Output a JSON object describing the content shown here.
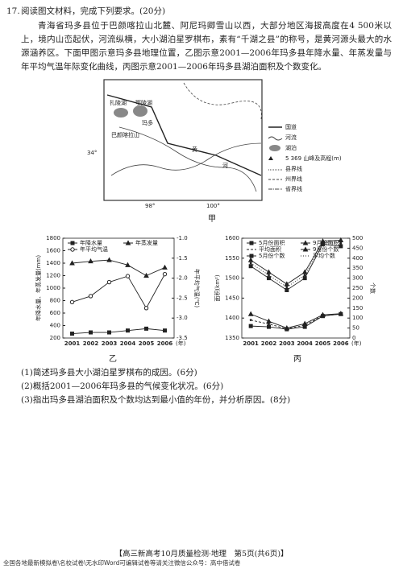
{
  "question": {
    "number": "17.",
    "prompt": "阅读图文材料，完成下列要求。(20分)",
    "paragraph_1": "青海省玛多县位于巴颜喀拉山北麓、阿尼玛卿雪山以西，大部分地区海拔高度在4 500米以上，境内山峦起伏，河流纵横，大小湖泊星罗棋布，素有“千湖之县”的称号，是黄河源头最大的水源涵养区。下面甲图示意玛多县地理位置，乙图示意2001—2006年玛多县年降水量、年蒸发量与年平均气温年际变化曲线，丙图示意2001—2006年玛多县湖泊面积及个数变化。"
  },
  "map": {
    "caption": "甲",
    "labels": [
      "扎陵湖",
      "鄂陵湖",
      "玛多",
      "巴颜喀拉山",
      "黄",
      "河",
      "34°",
      "98°",
      "100°"
    ],
    "legend": [
      "国道",
      "河流",
      "湖泊",
      "5 369 山峰及高程(m)",
      "县界线",
      "州界线",
      "省界线"
    ]
  },
  "chart_yi": {
    "type": "line",
    "caption": "乙",
    "y_label": "年降水量、年蒸发量(mm)",
    "y2_label": "年平均气温(℃)",
    "x_unit": "(年)",
    "categories": [
      "2001",
      "2002",
      "2003",
      "2004",
      "2005",
      "2006"
    ],
    "ylim": [
      200,
      1800
    ],
    "yticks": [
      200,
      400,
      600,
      800,
      1000,
      1200,
      1400,
      1600,
      1800
    ],
    "y2lim": [
      -3.5,
      -1.0
    ],
    "y2ticks": [
      -3.5,
      {
        "value": -3,
        "label": "-3.0"
      },
      -2.5,
      {
        "value": -2,
        "label": "-2.0"
      },
      -1.5,
      {
        "value": -1,
        "label": "-1.0"
      }
    ],
    "series": [
      {
        "name": "年降水量",
        "marker": "square",
        "values": [
          270,
          290,
          290,
          320,
          350,
          320
        ]
      },
      {
        "name": "年蒸发量",
        "marker": "triangle",
        "values": [
          1400,
          1430,
          1450,
          1370,
          1200,
          1330
        ]
      },
      {
        "name": "年平均气温",
        "marker": "circle",
        "axis": "y2",
        "values": [
          -2.6,
          -2.45,
          -2.1,
          -1.95,
          -2.75,
          -1.9
        ]
      }
    ]
  },
  "chart_bing": {
    "type": "line",
    "caption": "丙",
    "y_label": "面积(km²)",
    "y2_label": "个数",
    "x_unit": "(年)",
    "categories": [
      "2001",
      "2002",
      "2003",
      "2004",
      "2005",
      "2006"
    ],
    "ylim": [
      1350,
      1600
    ],
    "yticks": [
      1350,
      1400,
      1450,
      1500,
      1550,
      1600
    ],
    "y2lim": [
      0,
      500
    ],
    "y2ticks": [
      0,
      50,
      100,
      150,
      200,
      250,
      300,
      350,
      400,
      450,
      500
    ],
    "series": [
      {
        "name": "5月份面积",
        "marker": "square",
        "values": [
          1380,
          1378,
          1372,
          1378,
          1405,
          1410
        ]
      },
      {
        "name": "9月份面积",
        "marker": "triangle",
        "values": [
          1410,
          1392,
          1375,
          1386,
          1408,
          1411
        ]
      },
      {
        "name": "平均面积",
        "marker": "none",
        "dash": "3 2",
        "values": [
          1395,
          1385,
          1373,
          1382,
          1406,
          1410
        ]
      },
      {
        "name": "9月份个数",
        "marker": "triangle",
        "axis": "y2",
        "values": [
          390,
          330,
          270,
          330,
          485,
          490
        ]
      },
      {
        "name": "5月份个数",
        "marker": "square",
        "axis": "y2",
        "values": [
          360,
          300,
          240,
          300,
          470,
          460
        ]
      },
      {
        "name": "平均个数",
        "marker": "none",
        "dash": "1 2",
        "axis": "y2",
        "values": [
          375,
          315,
          255,
          315,
          478,
          475
        ]
      }
    ]
  },
  "questions": [
    "(1)简述玛多县大小湖泊星罗棋布的成因。(6分)",
    "(2)概括2001—2006年玛多县的气候变化状况。(6分)",
    "(3)指出玛多县湖泊面积及个数均达到最小值的年份，并分析原因。(8分)"
  ],
  "footer": "【高三新高考10月质量检测·地理　第5页(共6页)】",
  "notice": "全国各地最新模拟卷\\名校试卷\\无水印Word可编辑试卷等请关注微信公众号：高中借试卷"
}
